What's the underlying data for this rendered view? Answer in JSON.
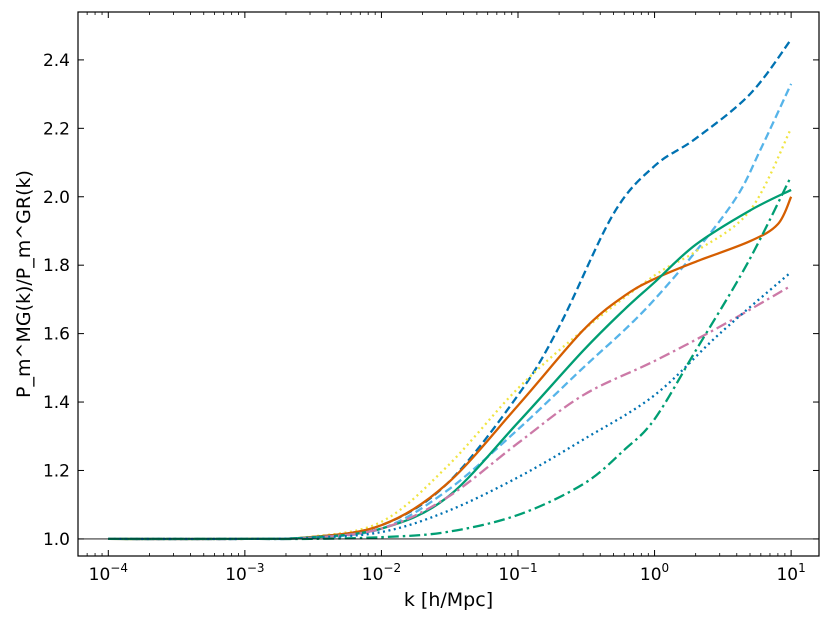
{
  "chart_data": {
    "type": "line",
    "title": "",
    "xlabel": "k [h/Mpc]",
    "ylabel": "P_m^MG(k)/P_m^GR(k)",
    "xscale": "log",
    "xlim": [
      6e-05,
      16
    ],
    "ylim": [
      0.95,
      2.54
    ],
    "grid": false,
    "legend": "none",
    "reference_line": {
      "y": 1.0,
      "color": "#000000"
    },
    "x_ticks": [
      {
        "value": 0.0001,
        "mantissa": "10",
        "exponent": "−4"
      },
      {
        "value": 0.001,
        "mantissa": "10",
        "exponent": "−3"
      },
      {
        "value": 0.01,
        "mantissa": "10",
        "exponent": "−2"
      },
      {
        "value": 0.1,
        "mantissa": "10",
        "exponent": "−1"
      },
      {
        "value": 1,
        "mantissa": "10",
        "exponent": "0"
      },
      {
        "value": 10,
        "mantissa": "10",
        "exponent": "1"
      }
    ],
    "y_ticks": [
      {
        "value": 1.0,
        "label": "1.0"
      },
      {
        "value": 1.2,
        "label": "1.2"
      },
      {
        "value": 1.4,
        "label": "1.4"
      },
      {
        "value": 1.6,
        "label": "1.6"
      },
      {
        "value": 1.8,
        "label": "1.8"
      },
      {
        "value": 2.0,
        "label": "2.0"
      },
      {
        "value": 2.2,
        "label": "2.2"
      },
      {
        "value": 2.4,
        "label": "2.4"
      }
    ],
    "series": [
      {
        "color": "#0072B2",
        "style": "dashed",
        "x": [
          0.0001,
          0.001,
          0.003,
          0.01,
          0.03,
          0.1,
          0.2,
          0.5,
          1,
          2,
          5,
          10
        ],
        "y": [
          1.0,
          1.0,
          1.005,
          1.04,
          1.16,
          1.42,
          1.62,
          1.95,
          2.09,
          2.17,
          2.3,
          2.46
        ]
      },
      {
        "color": "#56B4E9",
        "style": "dashed",
        "x": [
          0.0001,
          0.001,
          0.003,
          0.01,
          0.03,
          0.1,
          0.3,
          0.6,
          1,
          2,
          4,
          6,
          10
        ],
        "y": [
          1.0,
          1.0,
          1.003,
          1.03,
          1.14,
          1.32,
          1.5,
          1.61,
          1.7,
          1.84,
          2.0,
          2.14,
          2.33
        ]
      },
      {
        "color": "#F0E442",
        "style": "dotted",
        "x": [
          0.0001,
          0.001,
          0.003,
          0.01,
          0.03,
          0.1,
          0.3,
          1,
          2,
          5,
          10
        ],
        "y": [
          1.0,
          1.0,
          1.006,
          1.05,
          1.21,
          1.44,
          1.61,
          1.77,
          1.84,
          1.96,
          2.2
        ]
      },
      {
        "color": "#D55E00",
        "style": "solid",
        "x": [
          0.0001,
          0.001,
          0.003,
          0.01,
          0.03,
          0.1,
          0.3,
          0.6,
          1,
          2,
          5,
          8,
          10
        ],
        "y": [
          1.0,
          1.0,
          1.005,
          1.04,
          1.16,
          1.39,
          1.61,
          1.71,
          1.76,
          1.81,
          1.87,
          1.92,
          2.0
        ]
      },
      {
        "color": "#009E73",
        "style": "solid",
        "x": [
          0.0001,
          0.001,
          0.003,
          0.01,
          0.03,
          0.1,
          0.3,
          0.6,
          1,
          2,
          5,
          10
        ],
        "y": [
          1.0,
          1.0,
          1.004,
          1.03,
          1.12,
          1.34,
          1.55,
          1.67,
          1.75,
          1.86,
          1.96,
          2.02
        ]
      },
      {
        "color": "#CC79A7",
        "style": "dashdot",
        "x": [
          0.0001,
          0.001,
          0.003,
          0.01,
          0.03,
          0.1,
          0.3,
          1,
          3,
          10
        ],
        "y": [
          1.0,
          1.0,
          1.003,
          1.03,
          1.12,
          1.28,
          1.42,
          1.52,
          1.62,
          1.74
        ]
      },
      {
        "color": "#0072B2",
        "style": "dotted",
        "x": [
          0.0001,
          0.001,
          0.003,
          0.01,
          0.03,
          0.1,
          0.3,
          1,
          3,
          10
        ],
        "y": [
          1.0,
          1.0,
          1.003,
          1.02,
          1.08,
          1.18,
          1.29,
          1.42,
          1.6,
          1.78
        ]
      },
      {
        "color": "#009E73",
        "style": "dashdot",
        "x": [
          0.0001,
          0.001,
          0.003,
          0.01,
          0.03,
          0.1,
          0.3,
          0.6,
          1,
          2,
          4,
          6,
          10
        ],
        "y": [
          1.0,
          1.0,
          1.0,
          1.005,
          1.02,
          1.07,
          1.16,
          1.26,
          1.35,
          1.55,
          1.75,
          1.88,
          2.06
        ]
      }
    ]
  }
}
